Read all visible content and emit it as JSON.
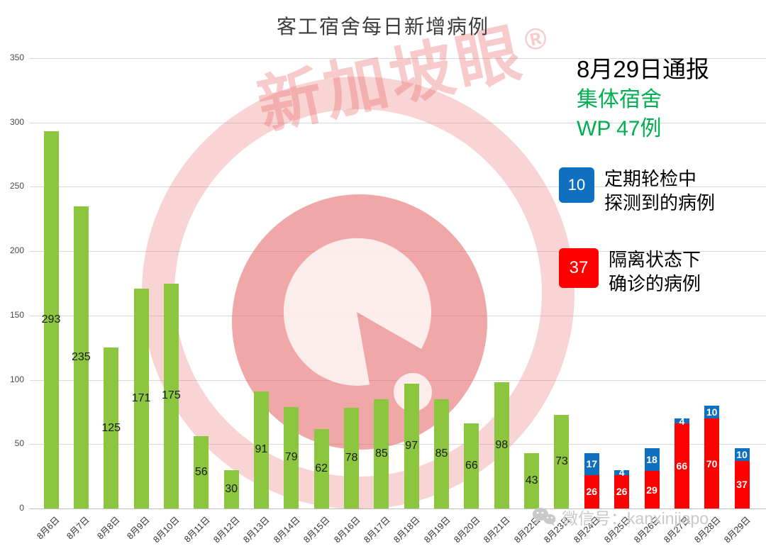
{
  "title": "客工宿舍每日新增病例",
  "watermark": {
    "text": "新加坡眼",
    "reg": "®"
  },
  "report": {
    "date_line": "8月29日通报",
    "type_line": "集体宿舍",
    "count_line": "WP 47例",
    "accent_green": "#00B050"
  },
  "legend": {
    "routine": {
      "value": 10,
      "color": "#1070C0",
      "label_line1": "定期轮检中",
      "label_line2": "探测到的病例"
    },
    "quarantine": {
      "value": 37,
      "color": "#FF0000",
      "label_line1": "隔离状态下",
      "label_line2": "确诊的病例"
    }
  },
  "footer": {
    "wechat_label": "微信号：kanxinjiapo"
  },
  "chart_data": {
    "type": "bar",
    "stacked": true,
    "title": "客工宿舍每日新增病例",
    "xlabel": "",
    "ylabel": "",
    "ylim": [
      0,
      350
    ],
    "yticks": [
      0,
      50,
      100,
      150,
      200,
      250,
      300,
      350
    ],
    "grid": true,
    "legend_position": "right",
    "categories": [
      "8月6日",
      "8月7日",
      "8月8日",
      "8月9日",
      "8月10日",
      "8月11日",
      "8月12日",
      "8月13日",
      "8月14日",
      "8月15日",
      "8月16日",
      "8月17日",
      "8月18日",
      "8月19日",
      "8月20日",
      "8月21日",
      "8月22日",
      "8月23日",
      "8月24日",
      "8月25日",
      "8月26日",
      "8月27日",
      "8月28日",
      "8月29日"
    ],
    "series": [
      {
        "name": "客工宿舍每日新增病例",
        "color": "#8CC63F",
        "label_color": "#1a1a1a",
        "values": [
          293,
          235,
          125,
          171,
          175,
          56,
          30,
          91,
          79,
          62,
          78,
          85,
          97,
          85,
          66,
          98,
          43,
          73,
          null,
          null,
          null,
          null,
          null,
          null
        ]
      },
      {
        "name": "隔离状态下确诊的病例",
        "color": "#FF0000",
        "label_color": "#ffffff",
        "values": [
          null,
          null,
          null,
          null,
          null,
          null,
          null,
          null,
          null,
          null,
          null,
          null,
          null,
          null,
          null,
          null,
          null,
          null,
          26,
          26,
          29,
          66,
          70,
          37
        ]
      },
      {
        "name": "定期轮检中探测到的病例",
        "color": "#1070C0",
        "label_color": "#ffffff",
        "values": [
          null,
          null,
          null,
          null,
          null,
          null,
          null,
          null,
          null,
          null,
          null,
          null,
          null,
          null,
          null,
          null,
          null,
          null,
          17,
          4,
          18,
          4,
          10,
          10
        ]
      }
    ]
  }
}
